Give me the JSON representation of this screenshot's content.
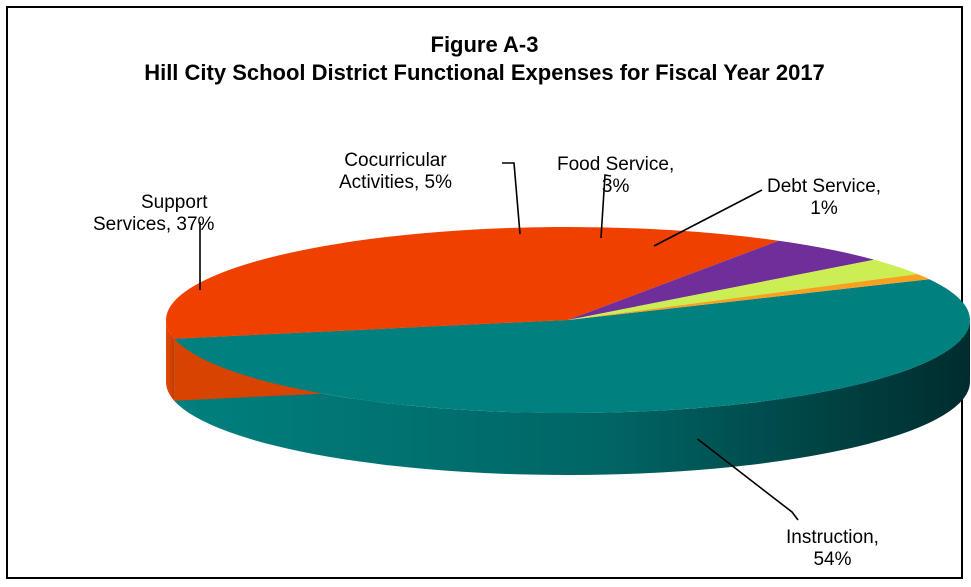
{
  "chart_data": {
    "type": "pie",
    "title": "Figure A-3",
    "subtitle": "Hill City School District  Functional Expenses for Fiscal Year 2017",
    "slices": [
      {
        "key": "instruction",
        "line1": "Instruction,",
        "line2": "54%",
        "value": 54,
        "color": "#00807F"
      },
      {
        "key": "support",
        "line1": "Support",
        "line2": "Services,  37%",
        "value": 37,
        "color": "#F04000"
      },
      {
        "key": "cocurricular",
        "line1": "Cocurricular",
        "line2": "Activities, 5%",
        "value": 5,
        "color": "#6F2E99"
      },
      {
        "key": "food",
        "line1": "Food Service,",
        "line2": "3%",
        "value": 3,
        "color": "#CCEE55"
      },
      {
        "key": "debt",
        "line1": "Debt Service,",
        "line2": "1%",
        "value": 1,
        "color": "#F8A020"
      }
    ]
  }
}
